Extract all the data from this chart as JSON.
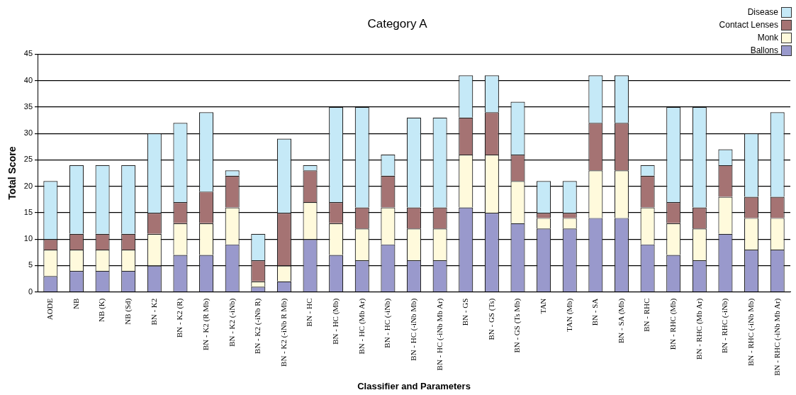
{
  "chart_data": {
    "type": "bar",
    "title": "Category A",
    "xlabel": "Classifier and Parameters",
    "ylabel": "Total Score",
    "categories": [
      "AODE",
      "NB",
      "NB (K)",
      "NB (Sd)",
      "BN - K2",
      "BN - K2 (R)",
      "BN - K2 (R Mb)",
      "BN - K2 (-iNb)",
      "BN - K2 (-iNb R)",
      "BN - K2 (-iNb R Mb)",
      "BN - HC",
      "BN - HC (Mb)",
      "BN - HC (Mb Ar)",
      "BN - HC (-iNb)",
      "BN - HC (-iNb Mb)",
      "BN - HC (-iNb Mb Ar)",
      "BN - GS",
      "BN - GS (Ts)",
      "BN - GS (Ts Mb)",
      "TAN",
      "TAN (Mb)",
      "BN - SA",
      "BN - SA (Mb)",
      "BN - RHC",
      "BN - RHC (Mb)",
      "BN - RHC (Mb Ar)",
      "BN - RHC (-iNb)",
      "BN - RHC (-iNb Mb)",
      "BN - RHC (-iNb Mb Ar)"
    ],
    "stacked": true,
    "series": [
      {
        "name": "Ballons",
        "color": "#9999cc",
        "values": [
          3,
          4,
          4,
          4,
          5,
          7,
          7,
          9,
          1,
          2,
          10,
          7,
          6,
          9,
          6,
          6,
          16,
          15,
          13,
          12,
          12,
          14,
          14,
          9,
          7,
          6,
          11,
          8,
          8
        ]
      },
      {
        "name": "Monk",
        "color": "#fffadc",
        "values": [
          5,
          4,
          4,
          4,
          6,
          6,
          6,
          7,
          1,
          3,
          7,
          6,
          6,
          7,
          6,
          6,
          10,
          11,
          8,
          2,
          2,
          9,
          9,
          7,
          6,
          6,
          7,
          6,
          6
        ]
      },
      {
        "name": "Contact Lenses",
        "color": "#a57373",
        "values": [
          2,
          3,
          3,
          3,
          4,
          4,
          6,
          6,
          4,
          10,
          6,
          4,
          4,
          6,
          4,
          4,
          7,
          8,
          5,
          1,
          1,
          9,
          9,
          6,
          4,
          4,
          6,
          4,
          4
        ]
      },
      {
        "name": "Disease",
        "color": "#c5e9f7",
        "values": [
          11,
          13,
          13,
          13,
          15,
          15,
          15,
          1,
          5,
          14,
          1,
          18,
          19,
          4,
          17,
          17,
          8,
          7,
          10,
          6,
          6,
          9,
          9,
          2,
          18,
          19,
          3,
          12,
          16
        ]
      }
    ],
    "ylim": [
      0,
      45
    ],
    "yticks": [
      0,
      5,
      10,
      15,
      20,
      25,
      30,
      35,
      40,
      45
    ],
    "grid": "y",
    "legend": "top right"
  }
}
